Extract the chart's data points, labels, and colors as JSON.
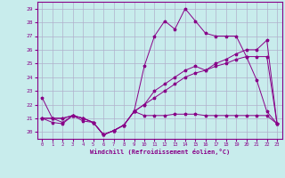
{
  "xlabel": "Windchill (Refroidissement éolien,°C)",
  "bg_color": "#c8ecec",
  "grid_color": "#b0b0cc",
  "line_color": "#880088",
  "spine_color": "#880088",
  "yticks": [
    20,
    21,
    22,
    23,
    24,
    25,
    26,
    27,
    28,
    29
  ],
  "xticks": [
    0,
    1,
    2,
    3,
    4,
    5,
    6,
    7,
    8,
    9,
    10,
    11,
    12,
    13,
    14,
    15,
    16,
    17,
    18,
    19,
    20,
    21,
    22,
    23
  ],
  "series1": [
    22.5,
    21.0,
    20.7,
    21.2,
    21.0,
    20.7,
    19.8,
    20.1,
    20.5,
    21.5,
    24.8,
    27.0,
    28.1,
    27.5,
    29.0,
    28.1,
    27.2,
    27.0,
    27.0,
    27.0,
    25.5,
    23.8,
    21.5,
    20.6
  ],
  "series2": [
    21.0,
    20.7,
    20.6,
    21.2,
    20.8,
    20.7,
    19.8,
    20.1,
    20.5,
    21.5,
    21.2,
    21.2,
    21.2,
    21.3,
    21.3,
    21.3,
    21.2,
    21.2,
    21.2,
    21.2,
    21.2,
    21.2,
    21.2,
    20.6
  ],
  "series3": [
    21.0,
    21.0,
    21.0,
    21.2,
    21.0,
    20.7,
    19.8,
    20.1,
    20.5,
    21.5,
    22.0,
    23.0,
    23.5,
    24.0,
    24.5,
    24.8,
    24.5,
    25.0,
    25.3,
    25.7,
    26.0,
    26.0,
    26.7,
    20.6
  ],
  "series4": [
    21.0,
    21.0,
    21.0,
    21.2,
    21.0,
    20.7,
    19.8,
    20.1,
    20.5,
    21.5,
    22.0,
    22.5,
    23.0,
    23.5,
    24.0,
    24.3,
    24.5,
    24.8,
    25.0,
    25.3,
    25.5,
    25.5,
    25.5,
    20.6
  ]
}
